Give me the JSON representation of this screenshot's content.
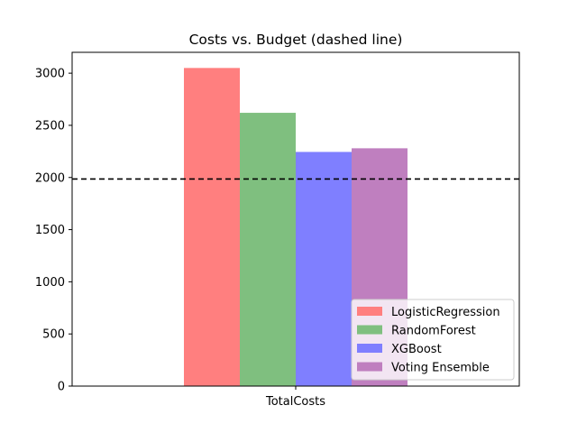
{
  "chart_data": {
    "type": "bar",
    "title": "Costs vs. Budget (dashed line)",
    "xlabel": "",
    "ylabel": "",
    "categories": [
      "TotalCosts"
    ],
    "series": [
      {
        "name": "LogisticRegression",
        "values": [
          3050
        ],
        "color": "#ff7f7f"
      },
      {
        "name": "RandomForest",
        "values": [
          2620
        ],
        "color": "#7fbf7f"
      },
      {
        "name": "XGBoost",
        "values": [
          2245
        ],
        "color": "#7f7fff"
      },
      {
        "name": "Voting Ensemble",
        "values": [
          2280
        ],
        "color": "#bf7fbf"
      }
    ],
    "budget": 1985,
    "ylim": [
      0,
      3200
    ],
    "yticks": [
      0,
      500,
      1000,
      1500,
      2000,
      2500,
      3000
    ],
    "grid": false,
    "legend_position": "lower-right"
  }
}
